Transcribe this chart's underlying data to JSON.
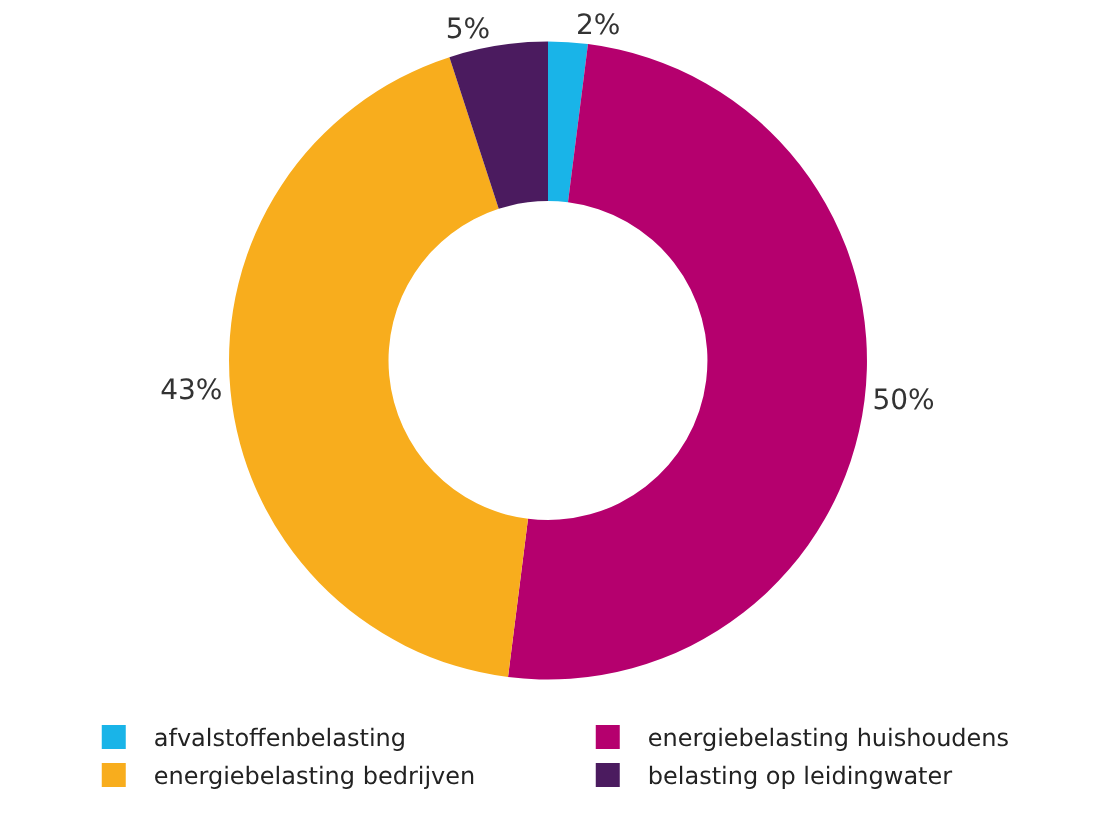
{
  "chart_data": {
    "type": "donut",
    "categories": [
      "afvalstoffenbelasting",
      "energiebelasting huishoudens",
      "energiebelasting bedrijven",
      "belasting op leidingwater"
    ],
    "values": [
      2,
      50,
      43,
      5
    ],
    "colors": [
      "#19b4e8",
      "#b5006e",
      "#f8ad1d",
      "#4b1b5f"
    ],
    "value_labels": [
      "2%",
      "50%",
      "43%",
      "5%"
    ],
    "legend": "bottom"
  }
}
